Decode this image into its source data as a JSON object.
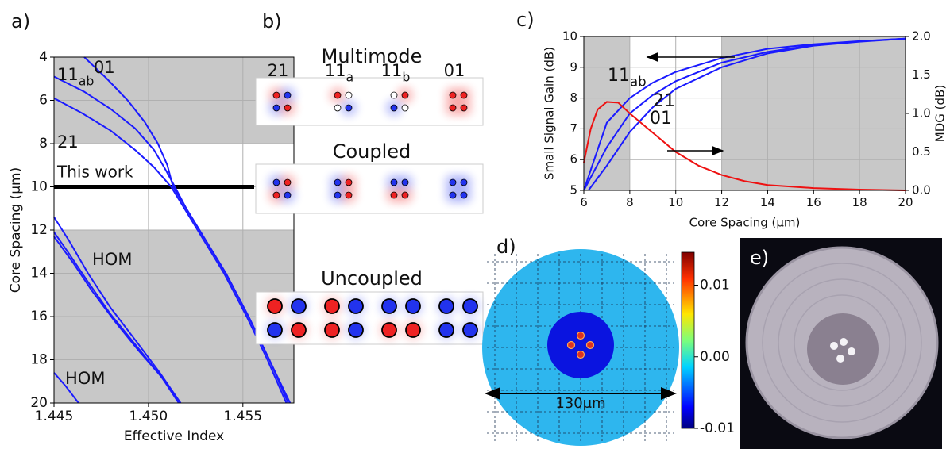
{
  "chart_data": [
    {
      "type": "line",
      "label": "a)",
      "xlabel": "Effective Index",
      "ylabel": "Core Spacing (μm)",
      "xlim": [
        1.445,
        1.4577
      ],
      "xticks": [
        1.445,
        {
          "value": 1.45,
          "label": "1.450"
        },
        1.455
      ],
      "ylim": [
        4,
        20
      ],
      "y_inverted": true,
      "yticks": [
        4,
        6,
        8,
        10,
        12,
        14,
        16,
        18,
        20
      ],
      "grid": true,
      "shaded_y": [
        [
          4,
          8
        ],
        [
          12,
          20
        ]
      ],
      "shade_color": "#c8c8c8",
      "hline": {
        "value": 10,
        "label": "This work",
        "color": "#000000"
      },
      "series": [
        {
          "color": "#1a1aff",
          "x": [
            1.4466,
            1.4478,
            1.4489,
            1.4498,
            1.4505,
            1.451,
            1.4513,
            1.452,
            1.4527,
            1.4541,
            1.4553,
            1.4564,
            1.4574
          ],
          "values": [
            4,
            5,
            6,
            7,
            8,
            9,
            10,
            11,
            12,
            14,
            16,
            18,
            20
          ]
        },
        {
          "color": "#1a1aff",
          "x": [
            1.445,
            1.4466,
            1.448,
            1.4493,
            1.4503,
            1.4509,
            1.4514,
            1.452,
            1.4527,
            1.4541,
            1.4553,
            1.4564,
            1.4575
          ],
          "values": [
            4.9,
            5.6,
            6.4,
            7.3,
            8.3,
            9.2,
            10,
            11,
            12,
            14,
            16,
            18,
            20
          ]
        },
        {
          "color": "#1a1aff",
          "x": [
            1.445,
            1.4465,
            1.448,
            1.4493,
            1.4503,
            1.4512,
            1.4519,
            1.4526,
            1.454,
            1.4552,
            1.4563,
            1.4573
          ],
          "values": [
            5.9,
            6.6,
            7.4,
            8.3,
            9.1,
            10,
            11,
            12,
            14,
            16,
            18,
            20
          ]
        },
        {
          "color": "#1a1aff",
          "x": [
            1.445,
            1.4458,
            1.4468,
            1.448,
            1.4494,
            1.4506,
            1.4517
          ],
          "values": [
            11.4,
            12.5,
            14,
            15.6,
            17.2,
            18.6,
            20
          ]
        },
        {
          "color": "#1a1aff",
          "x": [
            1.445,
            1.4458,
            1.4468,
            1.448,
            1.4494,
            1.4506,
            1.4517
          ],
          "values": [
            12.1,
            13.1,
            14.4,
            15.9,
            17.4,
            18.7,
            20
          ]
        },
        {
          "color": "#1a1aff",
          "x": [
            1.445,
            1.446,
            1.447,
            1.4482,
            1.4495,
            1.4507,
            1.4516
          ],
          "values": [
            12.3,
            13.5,
            14.8,
            16.2,
            17.6,
            18.8,
            20
          ]
        },
        {
          "color": "#1a1aff",
          "x": [
            1.445,
            1.4456,
            1.4463
          ],
          "values": [
            18.6,
            19.2,
            20
          ]
        }
      ],
      "annotations": [
        {
          "text": "11",
          "sub": "ab"
        },
        {
          "text": "01"
        },
        {
          "text": "21"
        },
        {
          "text": "HOM"
        },
        {
          "text": "HOM"
        }
      ]
    },
    {
      "type": "line",
      "label": "c)",
      "xlabel": "Core Spacing (μm)",
      "ylabel": "Small Signal Gain (dB)",
      "y2label": "MDG (dB)",
      "xlim": [
        6,
        20
      ],
      "xticks": [
        6,
        8,
        10,
        12,
        14,
        16,
        18,
        20
      ],
      "ylim": [
        5,
        10
      ],
      "yticks": [
        5,
        6,
        7,
        8,
        9,
        10
      ],
      "y2lim": [
        0,
        2
      ],
      "y2ticks": [
        {
          "value": 0,
          "label": "0.0"
        },
        0.5,
        {
          "value": 1,
          "label": "1.0"
        },
        1.5,
        {
          "value": 2,
          "label": "2.0"
        }
      ],
      "grid": true,
      "shaded_x": [
        [
          6,
          8
        ],
        [
          12,
          20
        ]
      ],
      "shade_color": "#c8c8c8",
      "series": [
        {
          "color": "#1a1aff",
          "x": [
            6,
            7,
            8,
            9,
            10,
            12,
            14,
            16,
            18,
            20
          ],
          "values": [
            5,
            7.2,
            8,
            8.5,
            8.85,
            9.3,
            9.6,
            9.75,
            9.85,
            9.93
          ]
        },
        {
          "color": "#1a1aff",
          "x": [
            6,
            7,
            8,
            9,
            10,
            12,
            14,
            16,
            18,
            20
          ],
          "values": [
            5,
            6.4,
            7.5,
            8.1,
            8.55,
            9.15,
            9.5,
            9.72,
            9.84,
            9.93
          ]
        },
        {
          "color": "#1a1aff",
          "x": [
            6.2,
            7,
            8,
            9,
            10,
            12,
            14,
            16,
            18,
            20
          ],
          "values": [
            5,
            5.8,
            6.9,
            7.7,
            8.3,
            9,
            9.45,
            9.7,
            9.83,
            9.93
          ]
        },
        {
          "color": "#ee1111",
          "axis": "y2",
          "x": [
            6,
            6.3,
            6.6,
            7,
            7.5,
            8,
            9,
            10,
            11,
            12,
            13,
            14,
            16,
            18,
            20
          ],
          "values": [
            0.36,
            0.8,
            1.05,
            1.15,
            1.14,
            1,
            0.75,
            0.5,
            0.32,
            0.2,
            0.12,
            0.07,
            0.03,
            0.01,
            0
          ]
        }
      ],
      "annotations": [
        {
          "text": "11",
          "sub": "ab"
        },
        {
          "text": "21"
        },
        {
          "text": "01"
        }
      ]
    }
  ],
  "mode_diagram": {
    "label": "b)",
    "groups": [
      {
        "title": "Multimode",
        "modes": [
          {
            "text": "21"
          },
          {
            "text": "11",
            "sub": "a"
          },
          {
            "text": "11",
            "sub": "b"
          },
          {
            "text": "01"
          }
        ]
      },
      {
        "title": "Coupled"
      },
      {
        "title": "Uncoupled"
      }
    ]
  },
  "index_profile": {
    "label": "d)",
    "scale_label": "130μm",
    "colorbar": {
      "lim": [
        -0.01,
        0.0146
      ],
      "ticks": [
        0.01,
        {
          "value": 0,
          "label": "0.00"
        },
        -0.01
      ]
    }
  },
  "photo": {
    "label": "e)"
  }
}
